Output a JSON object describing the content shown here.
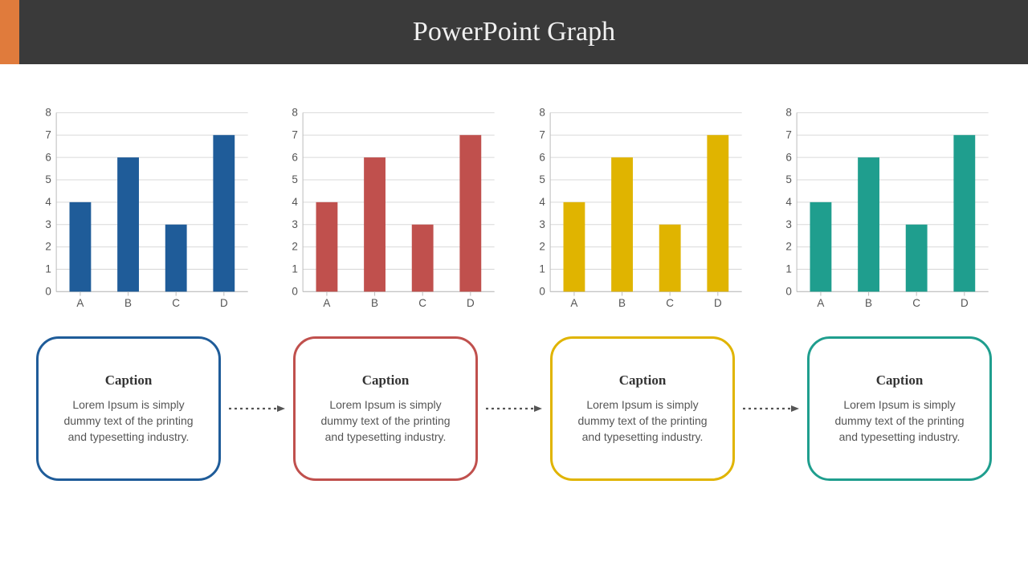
{
  "header": {
    "title": "PowerPoint Graph",
    "bg_color": "#3a3a3a",
    "accent_color": "#e07b3c",
    "title_color": "#f0f0f0",
    "title_fontsize": 34
  },
  "chart_common": {
    "type": "bar",
    "categories": [
      "A",
      "B",
      "C",
      "D"
    ],
    "values": [
      4,
      6,
      3,
      7
    ],
    "ylim": [
      0,
      8
    ],
    "ytick_step": 1,
    "bar_width": 0.45,
    "axis_color": "#bfbfbf",
    "grid_color": "#d9d9d9",
    "label_color": "#555555",
    "label_fontsize": 13,
    "grid": true
  },
  "charts": [
    {
      "bar_color": "#1f5c99"
    },
    {
      "bar_color": "#c0504d"
    },
    {
      "bar_color": "#e0b400"
    },
    {
      "bar_color": "#1f9e8e"
    }
  ],
  "captions": [
    {
      "title": "Caption",
      "body": "Lorem Ipsum is simply dummy text of the printing and typesetting industry.",
      "border_color": "#1f5c99"
    },
    {
      "title": "Caption",
      "body": "Lorem Ipsum is simply dummy text of the printing and typesetting industry.",
      "border_color": "#c0504d"
    },
    {
      "title": "Caption",
      "body": "Lorem Ipsum is simply dummy text of the printing and typesetting industry.",
      "border_color": "#e0b400"
    },
    {
      "title": "Caption",
      "body": "Lorem Ipsum is simply dummy text of the printing and typesetting industry.",
      "border_color": "#1f9e8e"
    }
  ],
  "arrow": {
    "color": "#555555",
    "dash": "3 4",
    "stroke_width": 2.2
  }
}
